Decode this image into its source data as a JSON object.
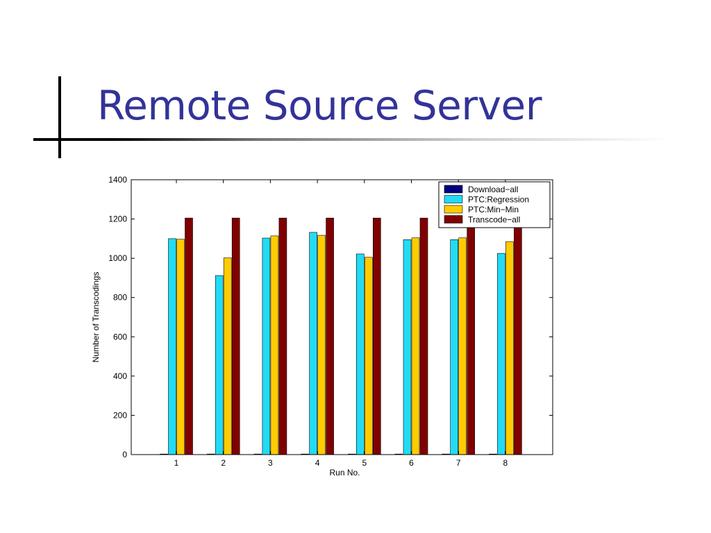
{
  "slide": {
    "title": "Remote Source Server"
  },
  "chart_data": {
    "type": "bar",
    "title": "",
    "xlabel": "Run No.",
    "ylabel": "Number of Transcodings",
    "categories": [
      "1",
      "2",
      "3",
      "4",
      "5",
      "6",
      "7",
      "8"
    ],
    "ylim": [
      0,
      1400
    ],
    "yticks": [
      0,
      200,
      400,
      600,
      800,
      1000,
      1200,
      1400
    ],
    "grid": false,
    "legend_position": "top-right",
    "series": [
      {
        "name": "Download−all",
        "color": "#000080",
        "values": [
          0,
          0,
          0,
          0,
          0,
          0,
          0,
          0
        ]
      },
      {
        "name": "PTC:Regression",
        "color": "#22dbf5",
        "values": [
          1100,
          912,
          1103,
          1132,
          1022,
          1095,
          1095,
          1025
        ]
      },
      {
        "name": "PTC:Min−Min",
        "color": "#ffcc00",
        "values": [
          1097,
          1002,
          1114,
          1117,
          1005,
          1104,
          1104,
          1085
        ]
      },
      {
        "name": "Transcode−all",
        "color": "#800000",
        "values": [
          1205,
          1205,
          1205,
          1205,
          1205,
          1205,
          1205,
          1205
        ]
      }
    ]
  }
}
